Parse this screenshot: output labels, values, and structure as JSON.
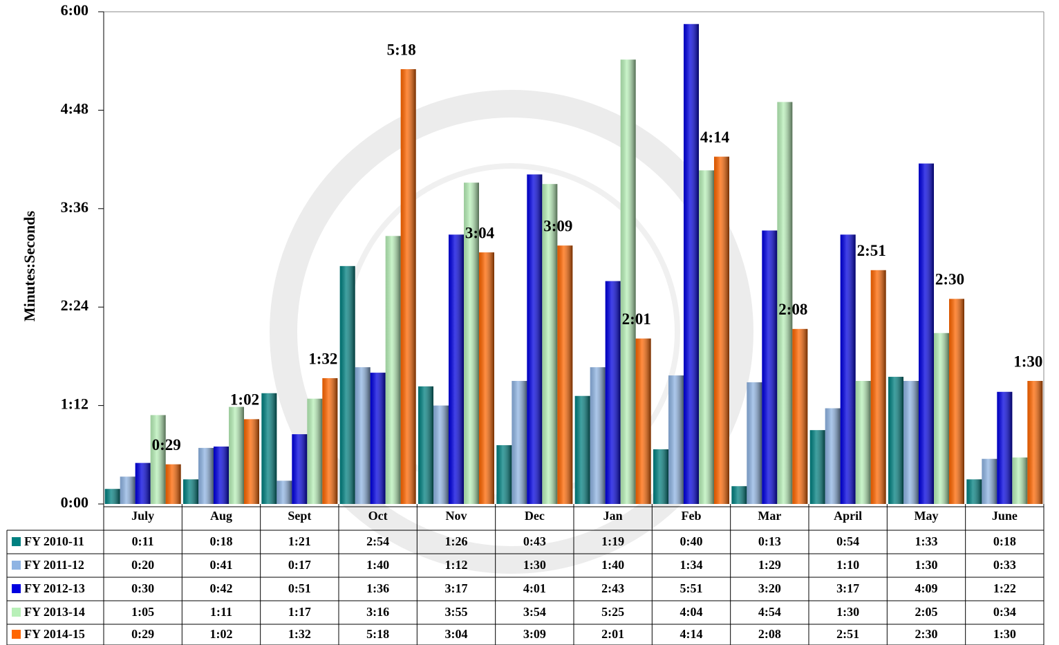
{
  "chart_data": {
    "type": "bar",
    "y_label": "Minutes:Seconds",
    "categories": [
      "July",
      "Aug",
      "Sept",
      "Oct",
      "Nov",
      "Dec",
      "Jan",
      "Feb",
      "Mar",
      "April",
      "May",
      "June"
    ],
    "ylim": [
      0,
      360
    ],
    "yticks": [
      {
        "value": 0,
        "label": "0:00"
      },
      {
        "value": 72,
        "label": "1:12"
      },
      {
        "value": 144,
        "label": "2:24"
      },
      {
        "value": 216,
        "label": "3:36"
      },
      {
        "value": 288,
        "label": "4:48"
      },
      {
        "value": 360,
        "label": "6:00"
      }
    ],
    "grid": false,
    "series": [
      {
        "name": "FY 2010-11",
        "color": "#008080",
        "show_labels": false,
        "values": [
          11,
          18,
          81,
          174,
          86,
          43,
          79,
          40,
          13,
          54,
          93,
          18
        ],
        "value_labels": [
          "0:11",
          "0:18",
          "1:21",
          "2:54",
          "1:26",
          "0:43",
          "1:19",
          "0:40",
          "0:13",
          "0:54",
          "1:33",
          "0:18"
        ]
      },
      {
        "name": "FY 2011-12",
        "color": "#8fb4e3",
        "show_labels": false,
        "values": [
          20,
          41,
          17,
          100,
          72,
          90,
          100,
          94,
          89,
          70,
          90,
          33
        ],
        "value_labels": [
          "0:20",
          "0:41",
          "0:17",
          "1:40",
          "1:12",
          "1:30",
          "1:40",
          "1:34",
          "1:29",
          "1:10",
          "1:30",
          "0:33"
        ]
      },
      {
        "name": "FY 2012-13",
        "color": "#0000e0",
        "show_labels": false,
        "values": [
          30,
          42,
          51,
          96,
          197,
          241,
          163,
          351,
          200,
          197,
          249,
          82
        ],
        "value_labels": [
          "0:30",
          "0:42",
          "0:51",
          "1:36",
          "3:17",
          "4:01",
          "2:43",
          "5:51",
          "3:20",
          "3:17",
          "4:09",
          "1:22"
        ]
      },
      {
        "name": "FY 2013-14",
        "color": "#b8f0b8",
        "show_labels": false,
        "values": [
          65,
          71,
          77,
          196,
          235,
          234,
          325,
          244,
          294,
          90,
          125,
          34
        ],
        "value_labels": [
          "1:05",
          "1:11",
          "1:17",
          "3:16",
          "3:55",
          "3:54",
          "5:25",
          "4:04",
          "4:54",
          "1:30",
          "2:05",
          "0:34"
        ]
      },
      {
        "name": "FY 2014-15",
        "color": "#ff6600",
        "show_labels": true,
        "values": [
          29,
          62,
          92,
          318,
          184,
          189,
          121,
          254,
          128,
          171,
          150,
          90
        ],
        "value_labels": [
          "0:29",
          "1:02",
          "1:32",
          "5:18",
          "3:04",
          "3:09",
          "2:01",
          "4:14",
          "2:08",
          "2:51",
          "2:30",
          "1:30"
        ]
      }
    ]
  }
}
